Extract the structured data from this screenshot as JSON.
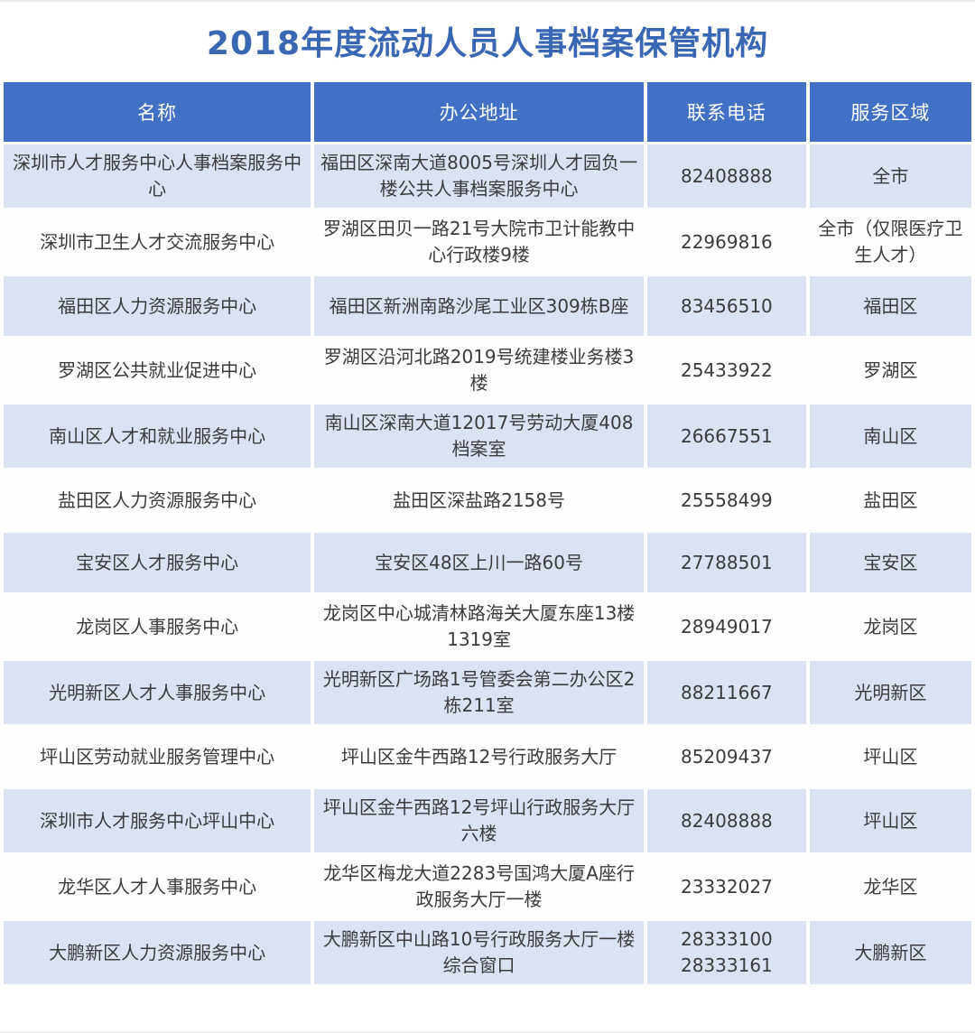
{
  "page": {
    "title": "2018年度流动人员人事档案保管机构"
  },
  "colors": {
    "header_bg": "#4170c4",
    "row_light": "#dbe2f1",
    "row_white": "#fefefe",
    "title_color": "#3a67b3",
    "text_color": "#3b3b3d"
  },
  "table": {
    "columns": [
      {
        "label": "名称"
      },
      {
        "label": "办公地址"
      },
      {
        "label": "联系电话"
      },
      {
        "label": "服务区域"
      }
    ],
    "rows": [
      {
        "name": "深圳市人才服务中心人事档案服务中心",
        "address": "福田区深南大道8005号深圳人才园负一楼公共人事档案服务中心",
        "phone": "82408888",
        "region": "全市"
      },
      {
        "name": "深圳市卫生人才交流服务中心",
        "address": "罗湖区田贝一路21号大院市卫计能教中心行政楼9楼",
        "phone": "22969816",
        "region": "全市（仅限医疗卫生人才）"
      },
      {
        "name": "福田区人力资源服务中心",
        "address": "福田区新洲南路沙尾工业区309栋B座",
        "phone": "83456510",
        "region": "福田区"
      },
      {
        "name": "罗湖区公共就业促进中心",
        "address": "罗湖区沿河北路2019号统建楼业务楼3楼",
        "phone": "25433922",
        "region": "罗湖区"
      },
      {
        "name": "南山区人才和就业服务中心",
        "address": "南山区深南大道12017号劳动大厦408档案室",
        "phone": "26667551",
        "region": "南山区"
      },
      {
        "name": "盐田区人力资源服务中心",
        "address": "盐田区深盐路2158号",
        "phone": "25558499",
        "region": "盐田区"
      },
      {
        "name": "宝安区人才服务中心",
        "address": "宝安区48区上川一路60号",
        "phone": "27788501",
        "region": "宝安区"
      },
      {
        "name": "龙岗区人事服务中心",
        "address": "龙岗区中心城清林路海关大厦东座13楼1319室",
        "phone": "28949017",
        "region": "龙岗区"
      },
      {
        "name": "光明新区人才人事服务中心",
        "address": "光明新区广场路1号管委会第二办公区2栋211室",
        "phone": "88211667",
        "region": "光明新区"
      },
      {
        "name": "坪山区劳动就业服务管理中心",
        "address": "坪山区金牛西路12号行政服务大厅",
        "phone": "85209437",
        "region": "坪山区"
      },
      {
        "name": "深圳市人才服务中心坪山中心",
        "address": "坪山区金牛西路12号坪山行政服务大厅六楼",
        "phone": "82408888",
        "region": "坪山区"
      },
      {
        "name": "龙华区人才人事服务中心",
        "address": "龙华区梅龙大道2283号国鸿大厦A座行政服务大厅一楼",
        "phone": "23332027",
        "region": "龙华区"
      },
      {
        "name": "大鹏新区人力资源服务中心",
        "address": "大鹏新区中山路10号行政服务大厅一楼综合窗口",
        "phone": "28333100\n28333161",
        "region": "大鹏新区"
      }
    ]
  }
}
